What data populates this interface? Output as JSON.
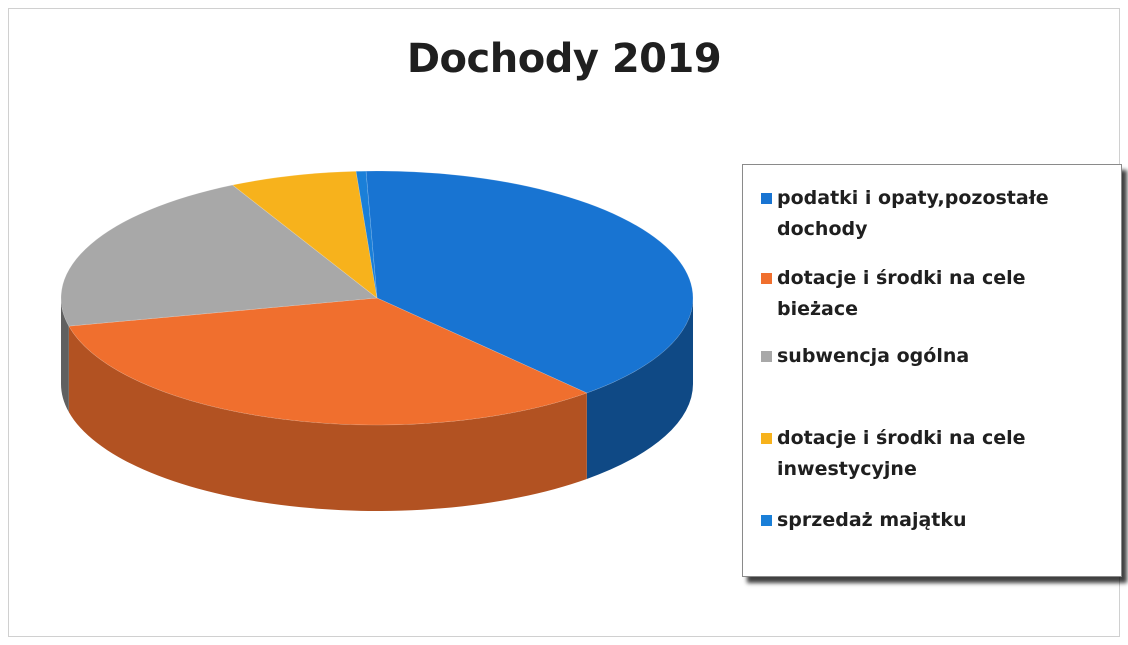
{
  "chart_data": {
    "type": "pie",
    "title": "Dochody 2019",
    "slices": [
      {
        "label": "podatki i opaty,pozostałe dochody",
        "value": 39.0,
        "color": "#1874d2"
      },
      {
        "label": "dotacje i środki na cele bieżace",
        "value": 33.0,
        "color": "#f06f2e"
      },
      {
        "label": "subwencja ogólna",
        "value": 21.0,
        "color": "#a8a8a8"
      },
      {
        "label": "dotacje i środki na cele inwestycyjne",
        "value": 6.5,
        "color": "#f7b21c"
      },
      {
        "label": "sprzedaż majątku",
        "value": 0.5,
        "color": "#1a7fd8"
      }
    ],
    "legend": "right",
    "style": "3d"
  }
}
